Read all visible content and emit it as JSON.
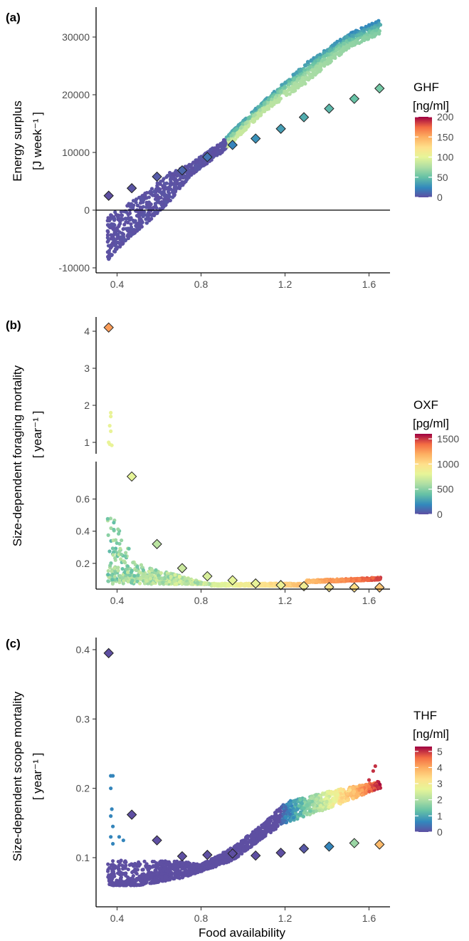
{
  "figure": {
    "xlabel_shared": "Food availability"
  },
  "chart_data": [
    {
      "type": "scatter",
      "panel": "(a)",
      "ylabel_line1": "Energy surplus",
      "ylabel_line2": "[J  week⁻¹ ]",
      "xlim": [
        0.3,
        1.7
      ],
      "x_ticks": [
        "0.4",
        "0.8",
        "1.2",
        "1.6"
      ],
      "ylim": [
        -11000,
        35000
      ],
      "y_ticks": [
        "-10000",
        "0",
        "10000",
        "20000",
        "30000"
      ],
      "hline_at": 0,
      "legend": {
        "title_line1": "GHF",
        "title_line2": "[ng/ml]",
        "ticks": [
          "200",
          "150",
          "100",
          "50",
          "0"
        ],
        "max": 200
      },
      "cloud_description_points": {
        "lower_edge": [
          [
            0.36,
            -8500
          ],
          [
            0.45,
            -5000
          ],
          [
            0.55,
            -2000
          ],
          [
            0.65,
            1500
          ],
          [
            0.75,
            6000
          ],
          [
            0.9,
            10000
          ],
          [
            1.1,
            17000
          ],
          [
            1.3,
            22000
          ],
          [
            1.5,
            28000
          ],
          [
            1.65,
            30500
          ]
        ],
        "upper_edge": [
          [
            0.36,
            -1000
          ],
          [
            0.45,
            1000
          ],
          [
            0.55,
            3500
          ],
          [
            0.65,
            6500
          ],
          [
            0.75,
            8000
          ],
          [
            0.9,
            12000
          ],
          [
            1.1,
            19000
          ],
          [
            1.3,
            25500
          ],
          [
            1.5,
            30500
          ],
          [
            1.65,
            33000
          ]
        ]
      },
      "diamonds": [
        {
          "x": 0.36,
          "y": 2500,
          "v": 0
        },
        {
          "x": 0.47,
          "y": 3800,
          "v": 2
        },
        {
          "x": 0.59,
          "y": 5800,
          "v": 5
        },
        {
          "x": 0.71,
          "y": 6900,
          "v": 10
        },
        {
          "x": 0.83,
          "y": 9200,
          "v": 16
        },
        {
          "x": 0.95,
          "y": 11300,
          "v": 22
        },
        {
          "x": 1.06,
          "y": 12400,
          "v": 28
        },
        {
          "x": 1.18,
          "y": 14100,
          "v": 34
        },
        {
          "x": 1.29,
          "y": 16100,
          "v": 40
        },
        {
          "x": 1.41,
          "y": 17600,
          "v": 45
        },
        {
          "x": 1.53,
          "y": 19300,
          "v": 50
        },
        {
          "x": 1.65,
          "y": 21100,
          "v": 55
        }
      ]
    },
    {
      "type": "scatter",
      "panel": "(b)",
      "ylabel_line1": "Size-dependent foraging mortality",
      "ylabel_line2": "[  year⁻¹ ]",
      "xlim": [
        0.3,
        1.7
      ],
      "x_ticks": [
        "0.4",
        "0.8",
        "1.2",
        "1.6"
      ],
      "y_ticks_upper": [
        "1",
        "2",
        "3",
        "4"
      ],
      "y_ticks_lower": [
        "0.2",
        "0.4",
        "0.6"
      ],
      "legend": {
        "title_line1": "OXF",
        "title_line2": "[pg/ml]",
        "ticks": [
          "1500",
          "1000",
          "500",
          "0"
        ],
        "max": 1600
      },
      "diamonds": [
        {
          "x": 0.36,
          "y": 4.1,
          "v": 1250
        },
        {
          "x": 0.47,
          "y": 0.74,
          "v": 800
        },
        {
          "x": 0.59,
          "y": 0.32,
          "v": 650
        },
        {
          "x": 0.71,
          "y": 0.17,
          "v": 700
        },
        {
          "x": 0.83,
          "y": 0.12,
          "v": 750
        },
        {
          "x": 0.95,
          "y": 0.095,
          "v": 800
        },
        {
          "x": 1.06,
          "y": 0.075,
          "v": 820
        },
        {
          "x": 1.18,
          "y": 0.065,
          "v": 850
        },
        {
          "x": 1.29,
          "y": 0.058,
          "v": 880
        },
        {
          "x": 1.41,
          "y": 0.052,
          "v": 950
        },
        {
          "x": 1.53,
          "y": 0.05,
          "v": 1000
        },
        {
          "x": 1.65,
          "y": 0.05,
          "v": 1100
        }
      ]
    },
    {
      "type": "scatter",
      "panel": "(c)",
      "ylabel_line1": "Size-dependent scope mortality",
      "ylabel_line2": "[  year⁻¹ ]",
      "xlabel": "Food availability",
      "xlim": [
        0.3,
        1.7
      ],
      "x_ticks": [
        "0.4",
        "0.8",
        "1.2",
        "1.6"
      ],
      "ylim": [
        0.04,
        0.41
      ],
      "y_ticks": [
        "0.1",
        "0.2",
        "0.3",
        "0.4"
      ],
      "legend": {
        "title_line1": "THF",
        "title_line2": "[ng/ml]",
        "ticks": [
          "5",
          "4",
          "3",
          "2",
          "1",
          "0"
        ],
        "max": 5.3
      },
      "diamonds": [
        {
          "x": 0.36,
          "y": 0.395,
          "v": 0
        },
        {
          "x": 0.47,
          "y": 0.162,
          "v": 0
        },
        {
          "x": 0.59,
          "y": 0.125,
          "v": 0
        },
        {
          "x": 0.71,
          "y": 0.102,
          "v": 0
        },
        {
          "x": 0.83,
          "y": 0.104,
          "v": 0
        },
        {
          "x": 0.95,
          "y": 0.106,
          "v": 0
        },
        {
          "x": 1.06,
          "y": 0.103,
          "v": 0
        },
        {
          "x": 1.18,
          "y": 0.107,
          "v": 0
        },
        {
          "x": 1.29,
          "y": 0.113,
          "v": 0.1
        },
        {
          "x": 1.41,
          "y": 0.116,
          "v": 0.6
        },
        {
          "x": 1.53,
          "y": 0.121,
          "v": 1.8
        },
        {
          "x": 1.65,
          "y": 0.119,
          "v": 3.8
        }
      ]
    }
  ]
}
